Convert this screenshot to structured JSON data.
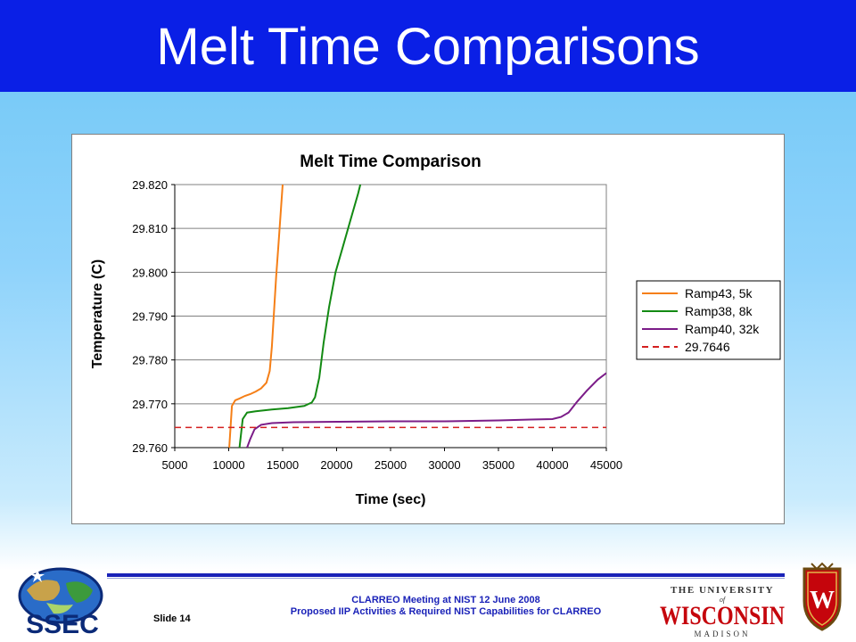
{
  "slide": {
    "title": "Melt Time Comparisons",
    "slide_number": "Slide 14",
    "footer_line1": "CLARREO Meeting at NIST 12 June 2008",
    "footer_line2": "Proposed IIP Activities & Required NIST Capabilities for CLARREO",
    "colors": {
      "title_bar": "#0a1fe6",
      "footer_line": "#1a22b8"
    }
  },
  "logos": {
    "ssec": {
      "icon": "ssec-globe-logo",
      "text": "SSEC"
    },
    "uw": {
      "icon": "university-wisconsin-wordmark",
      "line1": "THE UNIVERSITY",
      "of": "of",
      "main": "WISCONSIN",
      "line3": "MADISON"
    },
    "crest": {
      "icon": "wisconsin-crest-icon",
      "letter": "W"
    }
  },
  "chart_data": {
    "type": "line",
    "title": "Melt Time Comparison",
    "xlabel": "Time (sec)",
    "ylabel": "Temperature (C)",
    "xlim": [
      5000,
      45000
    ],
    "ylim": [
      29.76,
      29.82
    ],
    "xticks": [
      "5000",
      "10000",
      "15000",
      "20000",
      "25000",
      "30000",
      "35000",
      "40000",
      "45000"
    ],
    "yticks": [
      "29.760",
      "29.770",
      "29.780",
      "29.790",
      "29.800",
      "29.810",
      "29.820"
    ],
    "grid": "horizontal",
    "legend_position": "right",
    "series": [
      {
        "name": "Ramp43, 5k",
        "color": "#f57f17",
        "style": "solid",
        "x": [
          10050,
          10300,
          10600,
          11000,
          11500,
          12000,
          12500,
          13000,
          13500,
          13800,
          14000,
          14200,
          14400,
          14600,
          14800,
          15000
        ],
        "y": [
          29.76,
          29.7695,
          29.7708,
          29.7712,
          29.7718,
          29.7722,
          29.7728,
          29.7735,
          29.7748,
          29.7775,
          29.783,
          29.791,
          29.799,
          29.806,
          29.813,
          29.82
        ]
      },
      {
        "name": "Ramp38, 8k",
        "color": "#138a13",
        "style": "solid",
        "x": [
          11000,
          11300,
          11700,
          12500,
          14000,
          15500,
          17000,
          17700,
          18000,
          18400,
          18800,
          19300,
          19900,
          20600,
          21300,
          22000,
          22200
        ],
        "y": [
          29.76,
          29.7665,
          29.768,
          29.7683,
          29.7687,
          29.769,
          29.7695,
          29.7703,
          29.7715,
          29.776,
          29.784,
          29.792,
          29.8,
          29.806,
          29.812,
          29.818,
          29.82
        ]
      },
      {
        "name": "Ramp40, 32k",
        "color": "#7b1c88",
        "style": "solid",
        "x": [
          11700,
          12000,
          12400,
          13000,
          14000,
          16000,
          20000,
          25000,
          30000,
          35000,
          38000,
          40000,
          40800,
          41500,
          42300,
          43200,
          44200,
          45000
        ],
        "y": [
          29.76,
          29.762,
          29.7642,
          29.7652,
          29.7656,
          29.7658,
          29.7659,
          29.766,
          29.766,
          29.7662,
          29.7664,
          29.7665,
          29.767,
          29.768,
          29.7705,
          29.773,
          29.7755,
          29.777
        ]
      },
      {
        "name": "29.7646",
        "color": "#d42020",
        "style": "dashed",
        "x": [
          5000,
          45000
        ],
        "y": [
          29.7646,
          29.7646
        ]
      }
    ]
  }
}
